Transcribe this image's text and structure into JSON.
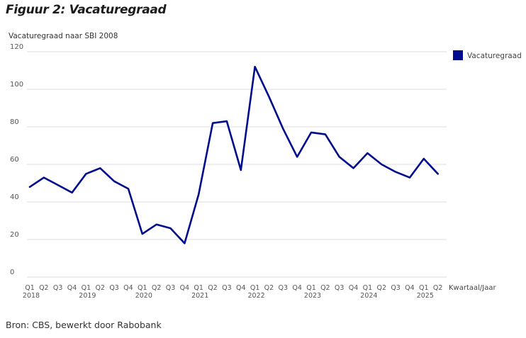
{
  "figure_title": "Figuur 2: Vacaturegraad",
  "source": "Bron: CBS, bewerkt door Rabobank",
  "colors": {
    "series": "#000c8c",
    "grid": "#dcdcdc",
    "text": "#555555"
  },
  "chart_data": {
    "type": "line",
    "title": "",
    "ylabel": "Vacaturegraad naar SBI 2008",
    "xlabel": "Kwartaal/Jaar",
    "ylim": [
      0,
      120
    ],
    "yticks": [
      0,
      20,
      40,
      60,
      80,
      100,
      120
    ],
    "grid": true,
    "legend_position": "top-right",
    "x": [
      "Q1 2018",
      "Q2 2018",
      "Q3 2018",
      "Q4 2018",
      "Q1 2019",
      "Q2 2019",
      "Q3 2019",
      "Q4 2019",
      "Q1 2020",
      "Q2 2020",
      "Q3 2020",
      "Q4 2020",
      "Q1 2021",
      "Q2 2021",
      "Q3 2021",
      "Q4 2021",
      "Q1 2022",
      "Q2 2022",
      "Q3 2022",
      "Q4 2022",
      "Q1 2023",
      "Q2 2023",
      "Q3 2023",
      "Q4 2023",
      "Q1 2024",
      "Q2 2024",
      "Q3 2024",
      "Q4 2024",
      "Q1 2025",
      "Q2 2025"
    ],
    "quarter_labels": [
      "Q1",
      "Q2",
      "Q3",
      "Q4",
      "Q1",
      "Q2",
      "Q3",
      "Q4",
      "Q1",
      "Q2",
      "Q3",
      "Q4",
      "Q1",
      "Q2",
      "Q3",
      "Q4",
      "Q1",
      "Q2",
      "Q3",
      "Q4",
      "Q1",
      "Q2",
      "Q3",
      "Q4",
      "Q1",
      "Q2",
      "Q3",
      "Q4",
      "Q1",
      "Q2"
    ],
    "year_labels": [
      {
        "label": "2018",
        "index": 0
      },
      {
        "label": "2019",
        "index": 4
      },
      {
        "label": "2020",
        "index": 8
      },
      {
        "label": "2021",
        "index": 12
      },
      {
        "label": "2022",
        "index": 16
      },
      {
        "label": "2023",
        "index": 20
      },
      {
        "label": "2024",
        "index": 24
      },
      {
        "label": "2025",
        "index": 28
      }
    ],
    "series": [
      {
        "name": "Vacaturegraad",
        "values": [
          48,
          53,
          49,
          45,
          55,
          58,
          51,
          47,
          23,
          28,
          26,
          18,
          44,
          82,
          83,
          57,
          112,
          96,
          79,
          64,
          77,
          76,
          64,
          58,
          66,
          60,
          56,
          53,
          63,
          55
        ]
      }
    ]
  }
}
